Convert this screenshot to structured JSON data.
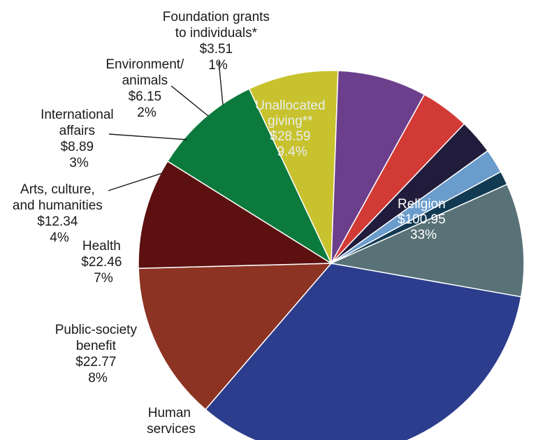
{
  "chart_data": {
    "type": "pie",
    "slices": [
      {
        "name": "Religion",
        "value": 100.95,
        "percent": "33%",
        "value_label": "$100.95",
        "color": "#2b3d8c"
      },
      {
        "name": "",
        "value": 40.0,
        "percent": "",
        "value_label": "",
        "color": "#8c3323"
      },
      {
        "name": "",
        "value": 28.0,
        "percent": "",
        "value_label": "",
        "color": "#5c1010"
      },
      {
        "name": "Human services",
        "value": 27.5,
        "percent": "",
        "value_label": "",
        "color": "#0c7a3c"
      },
      {
        "name": "Public-society benefit",
        "value": 22.77,
        "percent": "8%",
        "value_label": "$22.77",
        "color": "#c8c22e"
      },
      {
        "name": "Health",
        "value": 22.46,
        "percent": "7%",
        "value_label": "$22.46",
        "color": "#6c3f8c"
      },
      {
        "name": "Arts, culture, and humanities",
        "value": 12.34,
        "percent": "4%",
        "value_label": "$12.34",
        "color": "#d23a36"
      },
      {
        "name": "International affairs",
        "value": 8.89,
        "percent": "3%",
        "value_label": "$8.89",
        "color": "#221c3c"
      },
      {
        "name": "Environment/ animals",
        "value": 6.15,
        "percent": "2%",
        "value_label": "$6.15",
        "color": "#6a9ccc"
      },
      {
        "name": "Foundation grants to individuals*",
        "value": 3.51,
        "percent": "1%",
        "value_label": "$3.51",
        "color": "#123a52"
      },
      {
        "name": "Unallocated giving**",
        "value": 28.59,
        "percent": "9.4%",
        "value_label": "$28.59",
        "color": "#587278"
      }
    ],
    "labels": {
      "religion": [
        "Religion",
        "$100.95",
        "33%"
      ],
      "unallocated": [
        "Unallocated",
        "giving**",
        "$28.59",
        "9.4%"
      ],
      "foundation": [
        "Foundation grants",
        "to individuals*",
        "$3.51",
        "1%"
      ],
      "environment": [
        "Environment/",
        "animals",
        "$6.15",
        "2%"
      ],
      "international": [
        "International",
        "affairs",
        "$8.89",
        "3%"
      ],
      "arts": [
        "Arts, culture,",
        "and humanities",
        "$12.34",
        "4%"
      ],
      "health": [
        "Health",
        "$22.46",
        "7%"
      ],
      "public": [
        "Public-society",
        "benefit",
        "$22.77",
        "8%"
      ],
      "human": [
        "Human",
        "services"
      ]
    }
  }
}
